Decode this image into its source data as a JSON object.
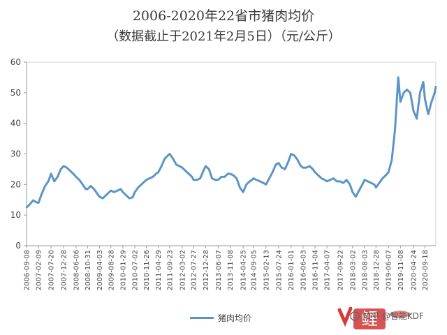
{
  "page": {
    "title": "2006-2020年22省市猪肉均价",
    "subtitle": "（数据截止于2021年2月5日）（元/公斤）",
    "watermark": "知乎 @智能KDF",
    "logo_text": "鲤"
  },
  "chart_data": {
    "type": "line",
    "title": "2006-2020年22省市猪肉均价",
    "subtitle": "（数据截止于2021年2月5日）（元/公斤）",
    "xlabel": "",
    "ylabel": "",
    "ylim": [
      0,
      60
    ],
    "yticks": [
      0,
      10,
      20,
      30,
      40,
      50,
      60
    ],
    "grid": false,
    "legend_position": "bottom",
    "x_tick_labels": [
      "2006-09-08",
      "2007-02-09",
      "2007-07-20",
      "2007-12-28",
      "2008-06-06",
      "2008-10-31",
      "2009-04-03",
      "2009-08-28",
      "2010-01-29",
      "2010-07-02",
      "2010-11-26",
      "2011-04-29",
      "2011-09-23",
      "2012-03-02",
      "2012-07-27",
      "2012-12-28",
      "2013-06-07",
      "2013-11-08",
      "2014-04-25",
      "2014-09-05",
      "2015-02-13",
      "2015-07-24",
      "2016-01-01",
      "2016-06-03",
      "2016-11-04",
      "2017-04-07",
      "2017-09-22",
      "2018-03-02",
      "2018-08-03",
      "2018-12-28",
      "2019-06-07",
      "2019-11-08",
      "2020-04-24",
      "2020-09-18"
    ],
    "series": [
      {
        "name": "猪肉均价",
        "color": "#5b95c7",
        "x": [
          "2006-09-08",
          "2006-10-20",
          "2006-12-01",
          "2007-01-12",
          "2007-02-09",
          "2007-03-23",
          "2007-05-04",
          "2007-06-15",
          "2007-07-20",
          "2007-08-31",
          "2007-10-12",
          "2007-11-23",
          "2007-12-28",
          "2008-02-08",
          "2008-03-21",
          "2008-05-02",
          "2008-06-06",
          "2008-07-18",
          "2008-08-29",
          "2008-10-10",
          "2008-10-31",
          "2008-12-12",
          "2009-01-23",
          "2009-03-06",
          "2009-04-03",
          "2009-05-15",
          "2009-06-26",
          "2009-08-07",
          "2009-08-28",
          "2009-10-09",
          "2009-11-20",
          "2010-01-01",
          "2010-01-29",
          "2010-03-12",
          "2010-04-23",
          "2010-06-04",
          "2010-07-02",
          "2010-08-13",
          "2010-09-24",
          "2010-11-05",
          "2010-11-26",
          "2011-01-07",
          "2011-02-18",
          "2011-04-01",
          "2011-04-29",
          "2011-06-10",
          "2011-07-22",
          "2011-09-02",
          "2011-09-23",
          "2011-11-04",
          "2011-12-16",
          "2012-01-27",
          "2012-03-02",
          "2012-04-13",
          "2012-05-25",
          "2012-07-06",
          "2012-07-27",
          "2012-09-07",
          "2012-10-19",
          "2012-11-30",
          "2012-12-28",
          "2013-02-08",
          "2013-03-22",
          "2013-05-03",
          "2013-06-07",
          "2013-07-19",
          "2013-08-30",
          "2013-10-11",
          "2013-11-08",
          "2013-12-20",
          "2014-01-31",
          "2014-03-14",
          "2014-04-25",
          "2014-06-06",
          "2014-07-18",
          "2014-08-15",
          "2014-09-05",
          "2014-10-17",
          "2014-11-28",
          "2015-01-09",
          "2015-02-13",
          "2015-03-27",
          "2015-05-08",
          "2015-06-19",
          "2015-07-24",
          "2015-09-04",
          "2015-10-16",
          "2015-11-27",
          "2016-01-01",
          "2016-02-12",
          "2016-03-25",
          "2016-05-06",
          "2016-06-03",
          "2016-07-15",
          "2016-08-26",
          "2016-10-07",
          "2016-11-04",
          "2016-12-16",
          "2017-01-27",
          "2017-03-10",
          "2017-04-07",
          "2017-05-19",
          "2017-06-30",
          "2017-08-11",
          "2017-09-22",
          "2017-11-03",
          "2017-12-15",
          "2018-01-26",
          "2018-03-02",
          "2018-04-13",
          "2018-05-25",
          "2018-07-06",
          "2018-08-03",
          "2018-09-14",
          "2018-10-26",
          "2018-12-07",
          "2018-12-28",
          "2019-02-08",
          "2019-03-22",
          "2019-05-03",
          "2019-06-07",
          "2019-07-19",
          "2019-08-30",
          "2019-10-11",
          "2019-11-08",
          "2019-12-20",
          "2020-01-31",
          "2020-03-13",
          "2020-04-24",
          "2020-06-05",
          "2020-07-17",
          "2020-08-28",
          "2020-09-18",
          "2020-10-30",
          "2020-12-11",
          "2021-01-22",
          "2021-02-05"
        ],
        "values": [
          12.5,
          13.5,
          14.8,
          14.2,
          14.0,
          17.0,
          19.5,
          21.0,
          23.5,
          21.0,
          22.5,
          25.0,
          26.0,
          25.5,
          24.5,
          23.5,
          22.5,
          21.5,
          20.0,
          18.5,
          18.5,
          19.5,
          18.5,
          17.0,
          16.0,
          15.5,
          16.5,
          17.5,
          18.0,
          17.5,
          18.0,
          18.5,
          17.5,
          16.5,
          15.5,
          15.8,
          17.5,
          19.0,
          20.0,
          21.0,
          21.5,
          22.0,
          22.5,
          23.5,
          24.0,
          26.0,
          28.5,
          29.5,
          30.0,
          28.5,
          26.5,
          26.0,
          25.5,
          24.5,
          23.5,
          22.5,
          21.5,
          21.5,
          22.0,
          24.5,
          26.0,
          25.0,
          22.0,
          21.5,
          21.5,
          22.5,
          22.5,
          23.5,
          23.5,
          23.0,
          22.0,
          19.0,
          17.5,
          20.0,
          21.0,
          21.5,
          22.0,
          21.5,
          21.0,
          20.5,
          20.0,
          22.0,
          24.0,
          26.5,
          27.0,
          25.5,
          25.0,
          27.5,
          30.0,
          29.5,
          28.0,
          26.0,
          25.5,
          25.5,
          26.0,
          25.0,
          24.0,
          23.0,
          22.0,
          21.5,
          21.0,
          21.5,
          22.0,
          21.0,
          21.0,
          20.5,
          21.5,
          20.0,
          17.5,
          16.0,
          18.0,
          20.0,
          21.5,
          21.0,
          20.5,
          20.0,
          19.0,
          20.5,
          22.0,
          23.0,
          24.0,
          28.0,
          38.0,
          55.0,
          47.0,
          50.0,
          51.0,
          50.0,
          44.0,
          41.5,
          50.0,
          53.5,
          48.0,
          43.0,
          47.0,
          50.0,
          52.0
        ]
      }
    ]
  }
}
